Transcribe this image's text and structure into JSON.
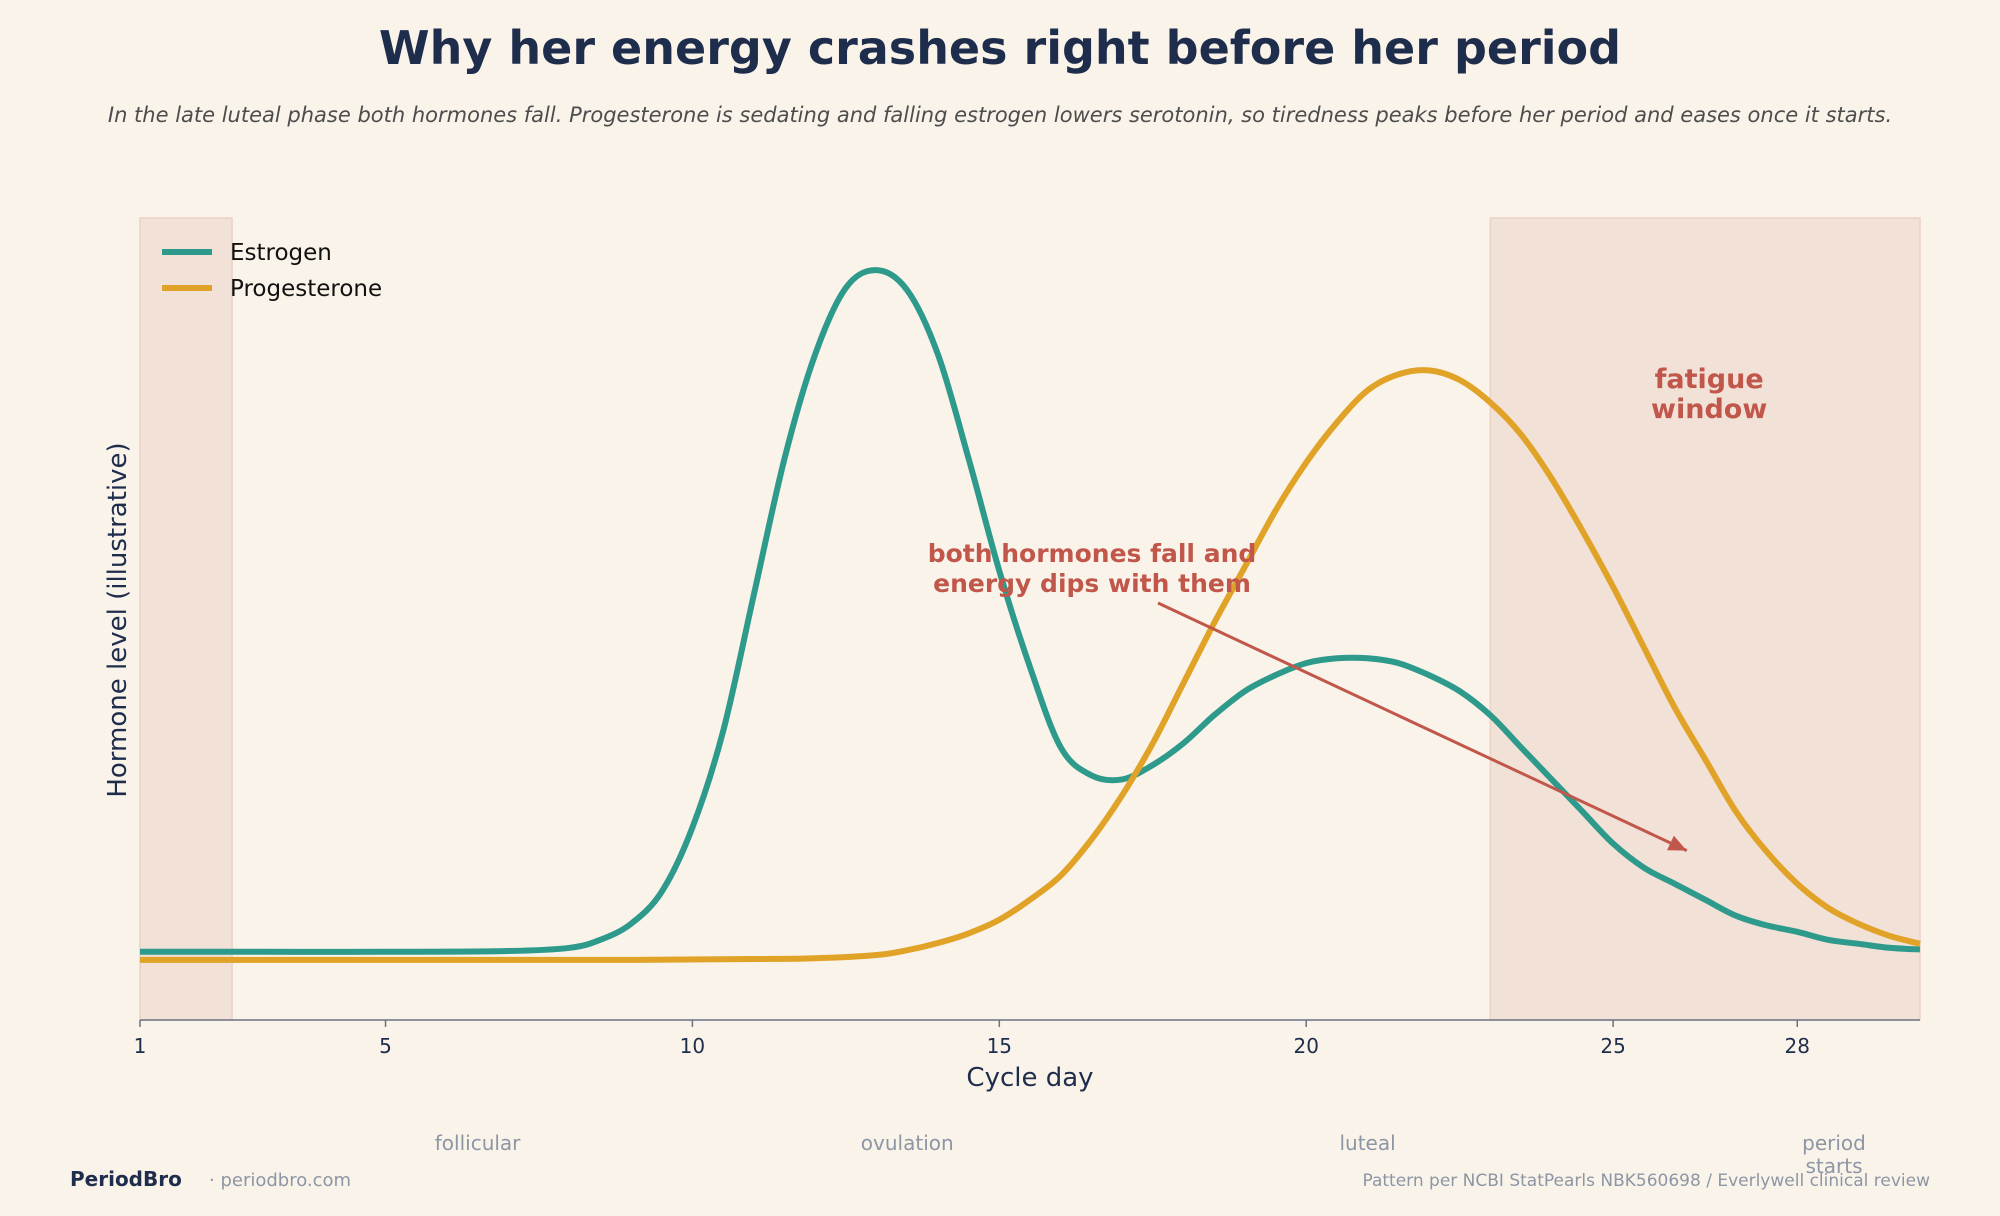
{
  "title": "Why her energy crashes right before her period",
  "subtitle": "In the late luteal phase both hormones fall. Progesterone is sedating and falling estrogen lowers serotonin, so tiredness peaks before her period and eases once it starts.",
  "colors": {
    "background": "#faf3ea",
    "estrogen": "#2e9a8c",
    "progesterone": "#e0a227",
    "highlight": "#c0574a",
    "shade": "#f2e1d7",
    "title": "#1f2d4d",
    "muted": "#8d96a4"
  },
  "chart_data": {
    "type": "line",
    "xlabel": "Cycle day",
    "ylabel": "Hormone level (illustrative)",
    "xlim": [
      1,
      30
    ],
    "ylim": [
      0,
      1
    ],
    "x_ticks": [
      1,
      5,
      10,
      15,
      20,
      25,
      28
    ],
    "y_ticks": [],
    "grid": false,
    "legend_position": "top-left",
    "series": [
      {
        "name": "Estrogen",
        "color": "#2e9a8c",
        "x": [
          1,
          3,
          5,
          7,
          8,
          8.5,
          9,
          9.5,
          10,
          10.5,
          11,
          11.5,
          12,
          12.5,
          13,
          13.5,
          14,
          14.5,
          15,
          15.5,
          16,
          16.5,
          17,
          17.5,
          18,
          18.5,
          19,
          19.5,
          20,
          20.5,
          21,
          21.5,
          22,
          22.5,
          23,
          23.5,
          24,
          24.5,
          25,
          25.5,
          26,
          26.5,
          27,
          27.5,
          28,
          28.5,
          29,
          29.5,
          30
        ],
        "y": [
          0.085,
          0.085,
          0.085,
          0.086,
          0.09,
          0.1,
          0.12,
          0.16,
          0.24,
          0.36,
          0.53,
          0.7,
          0.83,
          0.913,
          0.935,
          0.91,
          0.83,
          0.7,
          0.56,
          0.44,
          0.34,
          0.305,
          0.3,
          0.318,
          0.345,
          0.38,
          0.41,
          0.43,
          0.445,
          0.451,
          0.451,
          0.445,
          0.43,
          0.41,
          0.38,
          0.34,
          0.3,
          0.26,
          0.22,
          0.19,
          0.17,
          0.15,
          0.13,
          0.118,
          0.11,
          0.1,
          0.095,
          0.09,
          0.088
        ]
      },
      {
        "name": "Progesterone",
        "color": "#e0a227",
        "x": [
          1,
          5,
          9,
          11,
          12,
          13,
          13.5,
          14,
          14.5,
          15,
          15.5,
          16,
          16.5,
          17,
          17.5,
          18,
          18.5,
          19,
          19.5,
          20,
          20.5,
          21,
          21.5,
          22,
          22.5,
          23,
          23.5,
          24,
          24.5,
          25,
          25.5,
          26,
          26.5,
          27,
          27.5,
          28,
          28.5,
          29,
          29.5,
          30
        ],
        "y": [
          0.075,
          0.075,
          0.075,
          0.076,
          0.077,
          0.081,
          0.087,
          0.096,
          0.108,
          0.125,
          0.15,
          0.18,
          0.225,
          0.28,
          0.345,
          0.42,
          0.495,
          0.565,
          0.635,
          0.695,
          0.745,
          0.785,
          0.805,
          0.81,
          0.798,
          0.77,
          0.73,
          0.675,
          0.61,
          0.54,
          0.465,
          0.39,
          0.325,
          0.26,
          0.21,
          0.17,
          0.14,
          0.12,
          0.105,
          0.095
        ]
      }
    ],
    "shaded_regions": [
      {
        "x": [
          1,
          2.5
        ]
      },
      {
        "x": [
          23,
          30
        ],
        "label": "fatigue\nwindow"
      }
    ],
    "annotations": [
      {
        "text": "both hormones fall and\nenergy dips with them",
        "x": 17.8,
        "y": 0.55,
        "arrow_to": [
          26.2,
          0.2
        ]
      }
    ],
    "phase_labels": [
      {
        "text": "follicular",
        "x": 6.5
      },
      {
        "text": "ovulation",
        "x": 13.5
      },
      {
        "text": "luteal",
        "x": 21
      },
      {
        "text": "period\nstarts",
        "x": 29.6
      }
    ]
  },
  "footer": {
    "brand": "PeriodBro",
    "site": "· periodbro.com",
    "source": "Pattern per NCBI StatPearls NBK560698 / Everlywell clinical review"
  }
}
